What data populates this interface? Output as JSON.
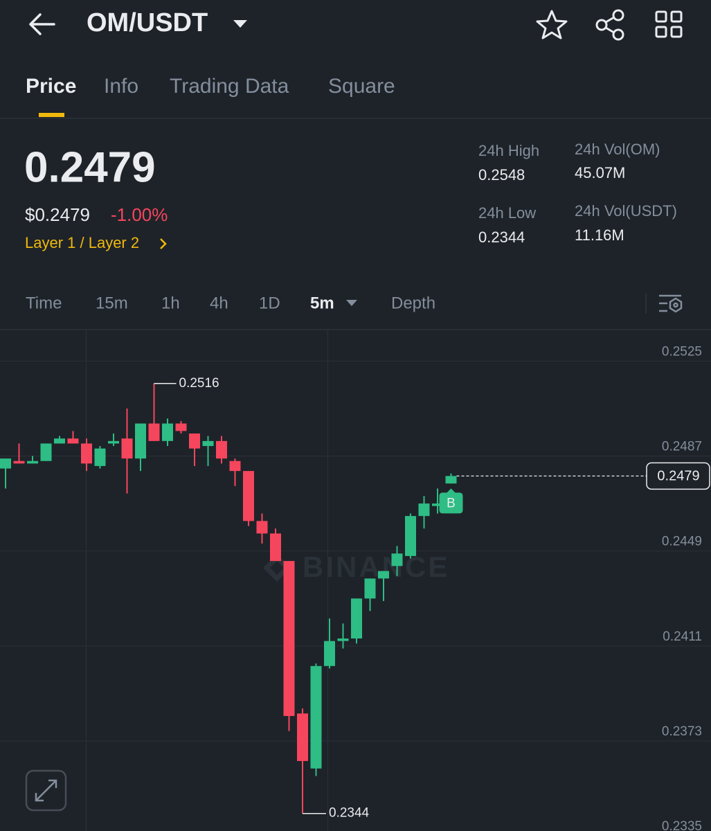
{
  "header": {
    "pair": "OM/USDT"
  },
  "tabs": [
    "Price",
    "Info",
    "Trading Data",
    "Square"
  ],
  "ticker": {
    "price": "0.2479",
    "price_usd": "$0.2479",
    "change": "-1.00%",
    "tag": "Layer 1 / Layer 2"
  },
  "stats": [
    {
      "label": "24h High",
      "value": "0.2548"
    },
    {
      "label": "24h Vol(OM)",
      "value": "45.07M"
    },
    {
      "label": "24h Low",
      "value": "0.2344"
    },
    {
      "label": "24h Vol(USDT)",
      "value": "11.16M"
    }
  ],
  "intervals": [
    "Time",
    "15m",
    "1h",
    "4h",
    "1D",
    "5m",
    "Depth"
  ],
  "chart_data": {
    "type": "candlestick",
    "watermark": "BINANCE",
    "up_color": "#2ebd85",
    "down_color": "#f6465d",
    "open": [
      0.2482,
      0.2485,
      0.2484,
      0.2485,
      0.2492,
      0.2494,
      0.2492,
      0.2483,
      0.2492,
      0.2494,
      0.2486,
      0.25,
      0.2493,
      0.25,
      0.2496,
      0.2491,
      0.2493,
      0.2485,
      0.2481,
      0.2461,
      0.2456,
      0.2445,
      0.2384,
      0.2362,
      0.2403,
      0.2413,
      0.2414,
      0.243,
      0.2438,
      0.2443,
      0.2447,
      0.2463,
      0.2467,
      0.2476
    ],
    "high": [
      0.2486,
      0.2492,
      0.2487,
      0.2492,
      0.2495,
      0.2497,
      0.2494,
      0.2491,
      0.2496,
      0.2506,
      0.25,
      0.2516,
      0.2502,
      0.2501,
      0.2496,
      0.2495,
      0.2495,
      0.2486,
      0.2481,
      0.2464,
      0.2458,
      0.2445,
      0.2386,
      0.2404,
      0.2422,
      0.242,
      0.243,
      0.2438,
      0.2441,
      0.2451,
      0.2464,
      0.2471,
      0.2474,
      0.248
    ],
    "low": [
      0.2474,
      0.2484,
      0.2484,
      0.2485,
      0.2492,
      0.2492,
      0.2481,
      0.2482,
      0.2491,
      0.2472,
      0.2481,
      0.2493,
      0.2491,
      0.2496,
      0.2483,
      0.2483,
      0.2484,
      0.2475,
      0.2459,
      0.2452,
      0.2445,
      0.2377,
      0.2344,
      0.2359,
      0.2402,
      0.241,
      0.2412,
      0.2425,
      0.2429,
      0.2439,
      0.2446,
      0.2458,
      0.2464,
      0.2476
    ],
    "close": [
      0.2486,
      0.2484,
      0.2485,
      0.2492,
      0.2494,
      0.2492,
      0.2484,
      0.249,
      0.2493,
      0.2486,
      0.25,
      0.2493,
      0.25,
      0.2497,
      0.249,
      0.2493,
      0.2486,
      0.2481,
      0.2461,
      0.2456,
      0.2445,
      0.2383,
      0.2365,
      0.2403,
      0.2413,
      0.2414,
      0.243,
      0.2438,
      0.2441,
      0.2448,
      0.2463,
      0.2468,
      0.2468,
      0.2479
    ],
    "max_marker": 0.2516,
    "min_marker": 0.2344,
    "last_price": 0.2479,
    "trade_marker": "B",
    "ylim": [
      0.2337,
      0.2537
    ],
    "yticks": [
      0.2525,
      0.2487,
      0.2449,
      0.2411,
      0.2373,
      0.2335
    ],
    "grid": true
  }
}
